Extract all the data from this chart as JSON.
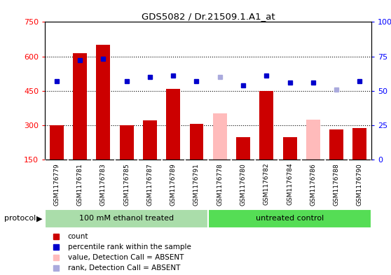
{
  "title": "GDS5082 / Dr.21509.1.A1_at",
  "samples": [
    "GSM1176779",
    "GSM1176781",
    "GSM1176783",
    "GSM1176785",
    "GSM1176787",
    "GSM1176789",
    "GSM1176791",
    "GSM1176778",
    "GSM1176780",
    "GSM1176782",
    "GSM1176784",
    "GSM1176786",
    "GSM1176788",
    "GSM1176790"
  ],
  "count_values": [
    300,
    615,
    650,
    298,
    320,
    458,
    305,
    350,
    248,
    448,
    248,
    325,
    280,
    287
  ],
  "count_is_absent": [
    false,
    false,
    false,
    false,
    false,
    false,
    false,
    true,
    false,
    false,
    false,
    true,
    false,
    false
  ],
  "rank_values": [
    57,
    72,
    73,
    57,
    60,
    61,
    57,
    60,
    54,
    61,
    56,
    56,
    51,
    57
  ],
  "rank_is_absent": [
    false,
    false,
    false,
    false,
    false,
    false,
    false,
    true,
    false,
    false,
    false,
    false,
    true,
    false
  ],
  "protocol_groups": [
    {
      "label": "100 mM ethanol treated",
      "start": 0,
      "end": 7
    },
    {
      "label": "untreated control",
      "start": 7,
      "end": 14
    }
  ],
  "ylim_left": [
    150,
    750
  ],
  "ylim_right": [
    0,
    100
  ],
  "yticks_left": [
    150,
    300,
    450,
    600,
    750
  ],
  "yticks_right": [
    0,
    25,
    50,
    75,
    100
  ],
  "bar_color_present": "#cc0000",
  "bar_color_absent": "#ffbbbb",
  "rank_color_present": "#0000cc",
  "rank_color_absent": "#aaaadd",
  "protocol_color_1": "#aaddaa",
  "protocol_color_2": "#55dd55",
  "grid_color": "#000000",
  "legend_items": [
    {
      "color": "#cc0000",
      "label": "count"
    },
    {
      "color": "#0000cc",
      "label": "percentile rank within the sample"
    },
    {
      "color": "#ffbbbb",
      "label": "value, Detection Call = ABSENT"
    },
    {
      "color": "#aaaadd",
      "label": "rank, Detection Call = ABSENT"
    }
  ]
}
